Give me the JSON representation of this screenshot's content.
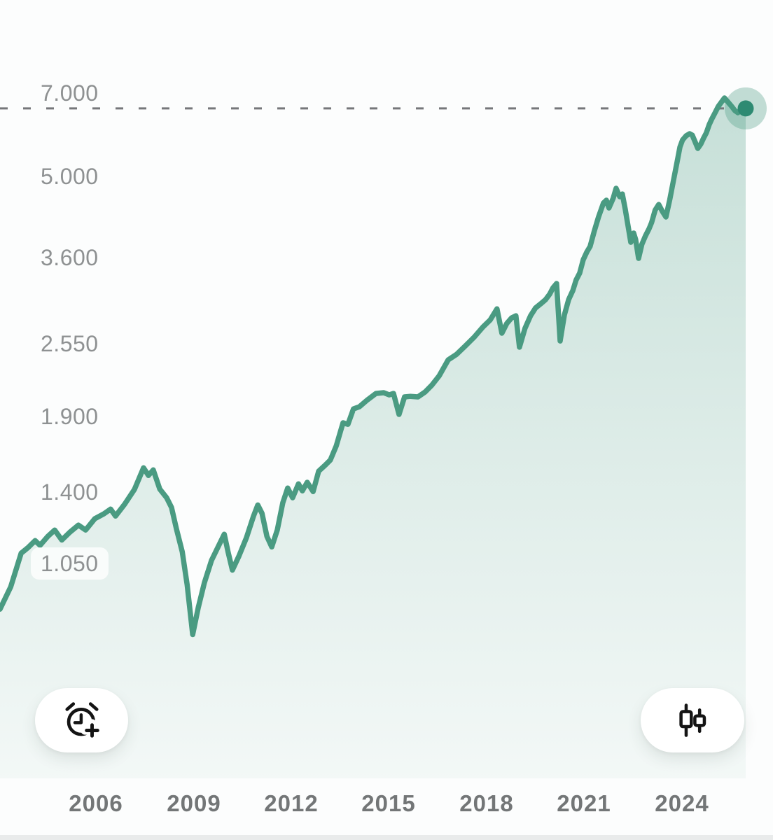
{
  "chart_data": {
    "type": "area",
    "description": "Stock index price history, monthly line with area fill on logarithmic scale",
    "x_axis": {
      "range": [
        2003.05,
        2026.8
      ],
      "ticks": [
        {
          "label": "2006",
          "year": 2006
        },
        {
          "label": "2009",
          "year": 2009
        },
        {
          "label": "2012",
          "year": 2012
        },
        {
          "label": "2015",
          "year": 2015
        },
        {
          "label": "2018",
          "year": 2018
        },
        {
          "label": "2021",
          "year": 2021
        },
        {
          "label": "2024",
          "year": 2024
        }
      ]
    },
    "y_axis": {
      "scale": "log",
      "range": [
        344,
        10190
      ],
      "ticks": [
        {
          "label": "7.000",
          "value": 7000,
          "pill": false
        },
        {
          "label": "5.000",
          "value": 5000,
          "pill": false
        },
        {
          "label": "3.600",
          "value": 3600,
          "pill": false
        },
        {
          "label": "2.550",
          "value": 2550,
          "pill": false
        },
        {
          "label": "1.900",
          "value": 1900,
          "pill": false
        },
        {
          "label": "1.400",
          "value": 1400,
          "pill": false
        },
        {
          "label": "1.050",
          "value": 1050,
          "pill": true
        }
      ]
    },
    "series": [
      {
        "name": "index-price",
        "points": [
          [
            2003.05,
            873
          ],
          [
            2003.38,
            955
          ],
          [
            2003.7,
            1094
          ],
          [
            2003.91,
            1119
          ],
          [
            2004.13,
            1151
          ],
          [
            2004.28,
            1129
          ],
          [
            2004.52,
            1171
          ],
          [
            2004.73,
            1201
          ],
          [
            2004.95,
            1154
          ],
          [
            2005.2,
            1191
          ],
          [
            2005.46,
            1225
          ],
          [
            2005.68,
            1201
          ],
          [
            2005.96,
            1257
          ],
          [
            2006.24,
            1282
          ],
          [
            2006.45,
            1307
          ],
          [
            2006.6,
            1271
          ],
          [
            2006.88,
            1333
          ],
          [
            2007.18,
            1415
          ],
          [
            2007.46,
            1544
          ],
          [
            2007.61,
            1497
          ],
          [
            2007.76,
            1531
          ],
          [
            2007.96,
            1417
          ],
          [
            2008.17,
            1368
          ],
          [
            2008.32,
            1315
          ],
          [
            2008.47,
            1208
          ],
          [
            2008.65,
            1100
          ],
          [
            2008.8,
            963
          ],
          [
            2008.97,
            788
          ],
          [
            2009.14,
            878
          ],
          [
            2009.33,
            971
          ],
          [
            2009.55,
            1063
          ],
          [
            2009.76,
            1125
          ],
          [
            2009.94,
            1181
          ],
          [
            2010.06,
            1097
          ],
          [
            2010.19,
            1022
          ],
          [
            2010.39,
            1081
          ],
          [
            2010.62,
            1164
          ],
          [
            2010.84,
            1271
          ],
          [
            2010.97,
            1329
          ],
          [
            2011.1,
            1285
          ],
          [
            2011.25,
            1171
          ],
          [
            2011.4,
            1122
          ],
          [
            2011.57,
            1201
          ],
          [
            2011.74,
            1341
          ],
          [
            2011.89,
            1423
          ],
          [
            2012.04,
            1368
          ],
          [
            2012.22,
            1447
          ],
          [
            2012.34,
            1407
          ],
          [
            2012.49,
            1456
          ],
          [
            2012.67,
            1403
          ],
          [
            2012.84,
            1523
          ],
          [
            2013.05,
            1562
          ],
          [
            2013.2,
            1593
          ],
          [
            2013.38,
            1686
          ],
          [
            2013.59,
            1851
          ],
          [
            2013.74,
            1840
          ],
          [
            2013.91,
            1958
          ],
          [
            2014.09,
            1975
          ],
          [
            2014.34,
            2031
          ],
          [
            2014.6,
            2084
          ],
          [
            2014.84,
            2090
          ],
          [
            2015.01,
            2072
          ],
          [
            2015.14,
            2084
          ],
          [
            2015.31,
            1915
          ],
          [
            2015.48,
            2055
          ],
          [
            2015.66,
            2060
          ],
          [
            2015.89,
            2055
          ],
          [
            2016.11,
            2096
          ],
          [
            2016.32,
            2155
          ],
          [
            2016.54,
            2236
          ],
          [
            2016.82,
            2386
          ],
          [
            2017.08,
            2441
          ],
          [
            2017.35,
            2525
          ],
          [
            2017.63,
            2619
          ],
          [
            2017.89,
            2725
          ],
          [
            2018.11,
            2803
          ],
          [
            2018.32,
            2932
          ],
          [
            2018.47,
            2657
          ],
          [
            2018.62,
            2764
          ],
          [
            2018.77,
            2827
          ],
          [
            2018.9,
            2851
          ],
          [
            2019.01,
            2511
          ],
          [
            2019.18,
            2710
          ],
          [
            2019.35,
            2851
          ],
          [
            2019.5,
            2941
          ],
          [
            2019.66,
            2991
          ],
          [
            2019.81,
            3042
          ],
          [
            2019.94,
            3112
          ],
          [
            2020.04,
            3192
          ],
          [
            2020.15,
            3247
          ],
          [
            2020.26,
            2575
          ],
          [
            2020.39,
            2859
          ],
          [
            2020.52,
            3042
          ],
          [
            2020.65,
            3156
          ],
          [
            2020.75,
            3293
          ],
          [
            2020.86,
            3387
          ],
          [
            2020.97,
            3574
          ],
          [
            2021.08,
            3687
          ],
          [
            2021.18,
            3771
          ],
          [
            2021.31,
            4013
          ],
          [
            2021.44,
            4246
          ],
          [
            2021.59,
            4492
          ],
          [
            2021.68,
            4544
          ],
          [
            2021.76,
            4404
          ],
          [
            2021.89,
            4582
          ],
          [
            2021.98,
            4767
          ],
          [
            2022.09,
            4608
          ],
          [
            2022.17,
            4660
          ],
          [
            2022.26,
            4380
          ],
          [
            2022.34,
            4116
          ],
          [
            2022.43,
            3835
          ],
          [
            2022.52,
            3979
          ],
          [
            2022.58,
            3879
          ],
          [
            2022.67,
            3594
          ],
          [
            2022.77,
            3802
          ],
          [
            2022.88,
            3934
          ],
          [
            2022.99,
            4047
          ],
          [
            2023.07,
            4151
          ],
          [
            2023.18,
            4367
          ],
          [
            2023.29,
            4467
          ],
          [
            2023.4,
            4343
          ],
          [
            2023.51,
            4246
          ],
          [
            2023.63,
            4557
          ],
          [
            2023.74,
            4917
          ],
          [
            2023.85,
            5292
          ],
          [
            2023.94,
            5631
          ],
          [
            2024.02,
            5793
          ],
          [
            2024.13,
            5892
          ],
          [
            2024.24,
            5942
          ],
          [
            2024.32,
            5909
          ],
          [
            2024.41,
            5744
          ],
          [
            2024.49,
            5600
          ],
          [
            2024.58,
            5696
          ],
          [
            2024.67,
            5842
          ],
          [
            2024.75,
            5959
          ],
          [
            2024.84,
            6164
          ],
          [
            2024.92,
            6306
          ],
          [
            2025.01,
            6450
          ],
          [
            2025.12,
            6634
          ],
          [
            2025.23,
            6767
          ],
          [
            2025.31,
            6863
          ],
          [
            2025.42,
            6748
          ],
          [
            2025.53,
            6634
          ],
          [
            2025.63,
            6523
          ],
          [
            2025.72,
            6467
          ],
          [
            2025.81,
            6523
          ],
          [
            2025.89,
            6597
          ],
          [
            2025.96,
            6579
          ]
        ]
      }
    ],
    "latest": {
      "t": 2025.96,
      "value": 6579,
      "dashed_reference_line": true
    },
    "colors": {
      "line": "#4a9b82",
      "dot": "#2e8a72",
      "halo": "rgba(74,155,130,0.33)",
      "fill_top": "rgba(74,155,130,0.30)",
      "fill_bottom": "rgba(74,155,130,0.05)",
      "dashed_line": "#75777a",
      "y_label": "#8e9192",
      "x_label": "#737677"
    }
  },
  "controls": {
    "alert_button": {
      "icon": "alarm-plus-icon",
      "action": "create price alert"
    },
    "chart_style_button": {
      "icon": "candlestick-icon",
      "action": "switch to candlestick chart"
    }
  }
}
